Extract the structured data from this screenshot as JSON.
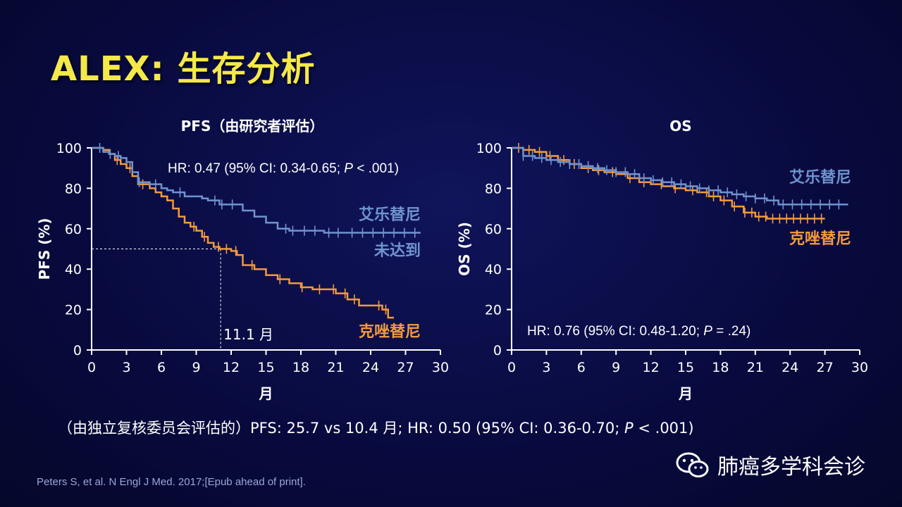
{
  "title": "ALEX: 生存分析",
  "colors": {
    "alectinib": "#6f93cf",
    "crizotinib": "#f29a3c",
    "axis": "#ffffff",
    "title": "#f5e94a"
  },
  "footnote": {
    "prefix": "（由独立复核委员会评估的）PFS: 25.7 vs 10.4 月; HR: 0.50 (95% CI: 0.36-0.70; ",
    "p": "P",
    "suffix": " < .001)"
  },
  "reference": "Peters S, et al. N Engl J Med. 2017;[Epub ahead of print].",
  "watermark": {
    "icon": "wechat-icon",
    "text": "肺癌多学科会诊"
  },
  "chart_data": [
    {
      "type": "line",
      "title": "PFS（由研究者评估）",
      "xlabel": "月",
      "ylabel": "PFS (%)",
      "xticks": [
        0,
        3,
        6,
        9,
        12,
        15,
        18,
        21,
        24,
        27,
        30
      ],
      "yticks": [
        0,
        20,
        40,
        60,
        80,
        100
      ],
      "xlim": [
        0,
        30
      ],
      "ylim": [
        0,
        100
      ],
      "hr_text": {
        "prefix": "HR: 0.47 (95% CI: 0.34-0.65; ",
        "p": "P",
        "suffix": " < .001)"
      },
      "median": {
        "x": 11.1,
        "y": 50,
        "label": "11.1 月"
      },
      "series": [
        {
          "name": "艾乐替尼",
          "label_lines": [
            "艾乐替尼",
            "未达到"
          ],
          "color": "#6f93cf",
          "x": [
            0,
            1,
            1.5,
            2,
            2.5,
            3,
            3.5,
            4,
            5,
            6,
            6.5,
            7,
            8,
            9,
            9.5,
            10,
            11,
            12,
            13,
            14,
            15,
            16,
            17,
            18,
            20,
            22,
            24,
            26,
            28.3
          ],
          "y": [
            100,
            98,
            97,
            96,
            95,
            93,
            88,
            83,
            82,
            80,
            79,
            78,
            76,
            76,
            75,
            74,
            72,
            72,
            69,
            66,
            63,
            60,
            59,
            59,
            58,
            58,
            58,
            58,
            58
          ],
          "censor_x": [
            0.7,
            1.6,
            2.3,
            4.1,
            5.5,
            7.6,
            10.6,
            11.2,
            12.1,
            16.7,
            17.3,
            18.3,
            19.2,
            20.4,
            21.2,
            22.4,
            23.3,
            24.2,
            25.1,
            26.0,
            26.9,
            27.8
          ]
        },
        {
          "name": "克唑替尼",
          "label_lines": [
            "克唑替尼"
          ],
          "color": "#f29a3c",
          "x": [
            0,
            1,
            1.5,
            2,
            2.5,
            3,
            3.5,
            4,
            5,
            5.5,
            6,
            6.5,
            7,
            7.5,
            8,
            8.5,
            9,
            9.5,
            10,
            10.5,
            11,
            12,
            12.5,
            13,
            14,
            15,
            16,
            17,
            18,
            19,
            21,
            22,
            23,
            25,
            25.5,
            26
          ],
          "y": [
            100,
            99,
            97,
            94,
            92,
            90,
            86,
            82,
            80,
            78,
            76,
            74,
            70,
            66,
            63,
            61,
            59,
            56,
            53,
            51,
            50,
            49,
            47,
            42,
            40,
            37,
            35,
            33,
            31,
            30,
            28,
            25,
            22,
            20,
            16,
            16
          ],
          "censor_x": [
            2.2,
            3.3,
            4.4,
            8.8,
            9.7,
            10.9,
            11.6,
            12.4,
            13.8,
            16.2,
            18.1,
            19.6,
            20.8,
            21.8,
            22.6,
            24.7,
            25.3
          ]
        }
      ]
    },
    {
      "type": "line",
      "title": "OS",
      "xlabel": "月",
      "ylabel": "OS (%)",
      "xticks": [
        0,
        3,
        6,
        9,
        12,
        15,
        18,
        21,
        24,
        27,
        30
      ],
      "yticks": [
        0,
        20,
        40,
        60,
        80,
        100
      ],
      "xlim": [
        0,
        30
      ],
      "ylim": [
        0,
        100
      ],
      "hr_text": {
        "prefix": "HR: 0.76 (95% CI: 0.48-1.20; ",
        "p": "P",
        "suffix": " = .24)"
      },
      "series": [
        {
          "name": "艾乐替尼",
          "label_lines": [
            "艾乐替尼"
          ],
          "color": "#6f93cf",
          "x": [
            0,
            1,
            2,
            3,
            4,
            5,
            6,
            7,
            8,
            9,
            10,
            11,
            12,
            13,
            14,
            15,
            16,
            17,
            18,
            19,
            20,
            21,
            22,
            23,
            25,
            27,
            29
          ],
          "y": [
            100,
            96,
            95,
            94,
            93,
            92,
            91,
            90,
            89,
            88,
            87,
            85,
            84,
            83,
            82,
            81,
            80,
            79,
            78,
            77,
            76,
            75,
            74,
            72,
            72,
            72,
            72
          ],
          "censor_x": [
            1,
            1.8,
            2.6,
            3.4,
            4.2,
            5,
            5.8,
            6.6,
            7.4,
            8.2,
            9,
            9.8,
            10.6,
            11.4,
            12.2,
            13,
            13.8,
            14.6,
            15.4,
            16.2,
            17,
            17.8,
            18.6,
            19.4,
            20.2,
            21,
            21.8,
            22.6,
            23.4,
            24.2,
            25,
            25.8,
            26.6,
            27.4,
            28.2
          ]
        },
        {
          "name": "克唑替尼",
          "label_lines": [
            "克唑替尼"
          ],
          "color": "#f29a3c",
          "x": [
            0,
            1,
            2,
            3,
            4,
            5,
            6,
            7,
            8,
            9,
            10,
            11,
            12,
            13,
            14,
            15,
            16,
            17,
            18,
            19,
            20,
            21,
            22,
            23,
            25,
            27
          ],
          "y": [
            100,
            99,
            98,
            96,
            94,
            92,
            90,
            89,
            88,
            87,
            85,
            83,
            82,
            81,
            80,
            79,
            78,
            76,
            74,
            71,
            68,
            66,
            65,
            65,
            65,
            65
          ],
          "censor_x": [
            0.6,
            1.5,
            2.4,
            3.3,
            4.5,
            5.4,
            6.6,
            7.5,
            8.7,
            10.2,
            11.4,
            12.9,
            14.1,
            15.6,
            16.8,
            17.4,
            18.3,
            19.2,
            20.1,
            20.7,
            21.3,
            21.9,
            22.5,
            23.1,
            23.7,
            24.3,
            24.9,
            25.5,
            26.1,
            26.7
          ]
        }
      ]
    }
  ]
}
